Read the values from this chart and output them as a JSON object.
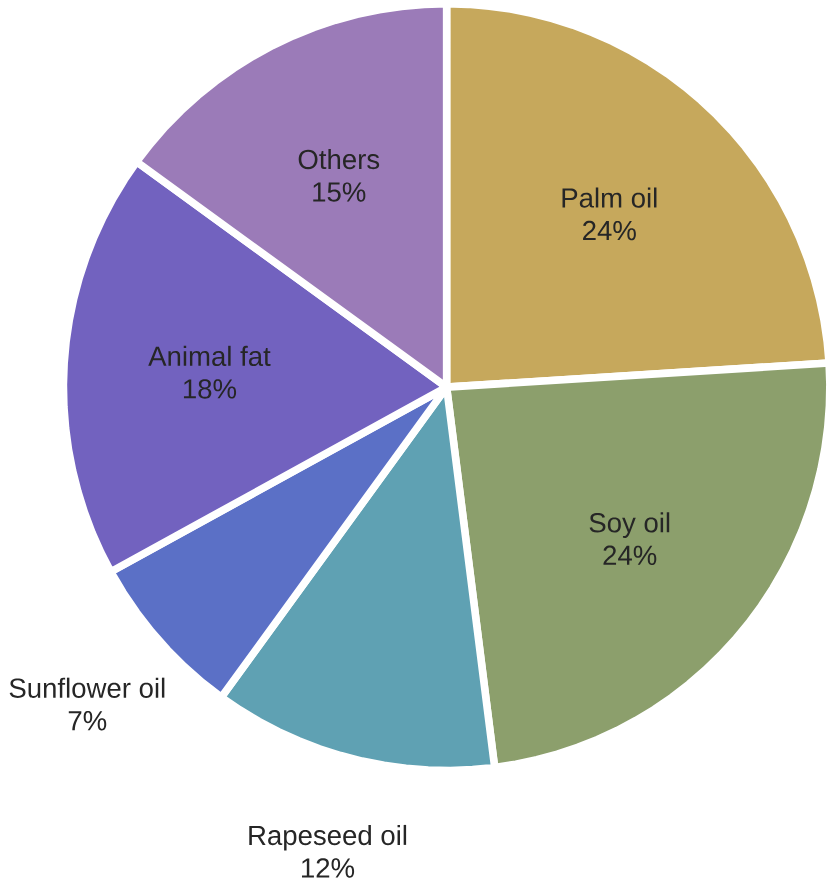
{
  "chart_data": {
    "type": "pie",
    "categories": [
      "Palm oil",
      "Soy oil",
      "Rapeseed oil",
      "Sunflower oil",
      "Animal fat",
      "Others"
    ],
    "values": [
      24,
      24,
      12,
      7,
      18,
      15
    ],
    "value_labels": [
      "24%",
      "24%",
      "12%",
      "7%",
      "18%",
      "15%"
    ],
    "colors": [
      "#c6a85c",
      "#8c9f6c",
      "#5fa1b3",
      "#5b70c6",
      "#7262bf",
      "#9b7bb8"
    ]
  }
}
